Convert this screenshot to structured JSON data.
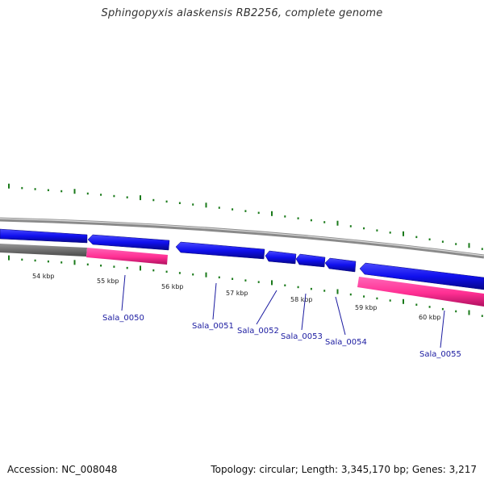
{
  "title": "Sphingopyxis alaskensis RB2256, complete genome",
  "footer": {
    "accession": "Accession: NC_008048",
    "summary": "Topology: circular; Length: 3,345,170 bp; Genes: 3,217"
  },
  "kbp_labels": [
    "54 kbp",
    "55 kbp",
    "56 kbp",
    "57 kbp",
    "58 kbp",
    "59 kbp",
    "60 kbp"
  ],
  "gene_labels": [
    "Sala_0050",
    "Sala_0051",
    "Sala_0052",
    "Sala_0053",
    "Sala_0054",
    "Sala_0055"
  ],
  "colors": {
    "cds": "#1010ee",
    "rna": "#ff3399",
    "backbone": "#777777",
    "gc_marks": "#1a7a1a",
    "label": "#1a1aa0"
  }
}
